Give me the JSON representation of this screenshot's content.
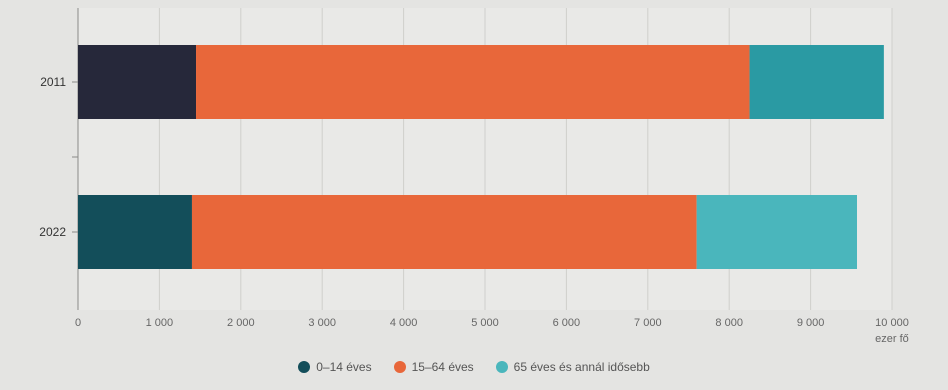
{
  "chart_data": {
    "type": "bar",
    "orientation": "horizontal",
    "stacked": true,
    "categories": [
      "2011",
      "2022"
    ],
    "series": [
      {
        "name": "0–14 éves",
        "values": [
          1450,
          1400
        ],
        "color": "#26283a"
      },
      {
        "name": "15–64 éves",
        "values": [
          6800,
          6200
        ],
        "color": "#e8673a"
      },
      {
        "name": "65 éves és annál idősebb",
        "values": [
          1650,
          1970
        ],
        "color": "#2a9aa3"
      }
    ],
    "series_colors_by_category": {
      "2011": [
        "#26283a",
        "#e8673a",
        "#2a9aa3"
      ],
      "2022": [
        "#134e5a",
        "#e8673a",
        "#4ab6bc"
      ]
    },
    "legend_colors": [
      "#134e5a",
      "#e8673a",
      "#4ab6bc"
    ],
    "xlim": [
      0,
      10000
    ],
    "x_ticks": [
      0,
      1000,
      2000,
      3000,
      4000,
      5000,
      6000,
      7000,
      8000,
      9000,
      10000
    ],
    "x_tick_labels": [
      "0",
      "1 000",
      "2 000",
      "3 000",
      "4 000",
      "5 000",
      "6 000",
      "7 000",
      "8 000",
      "9 000",
      "10 000"
    ],
    "x_unit": "ezer fő",
    "grid": true,
    "legend_position": "bottom"
  }
}
